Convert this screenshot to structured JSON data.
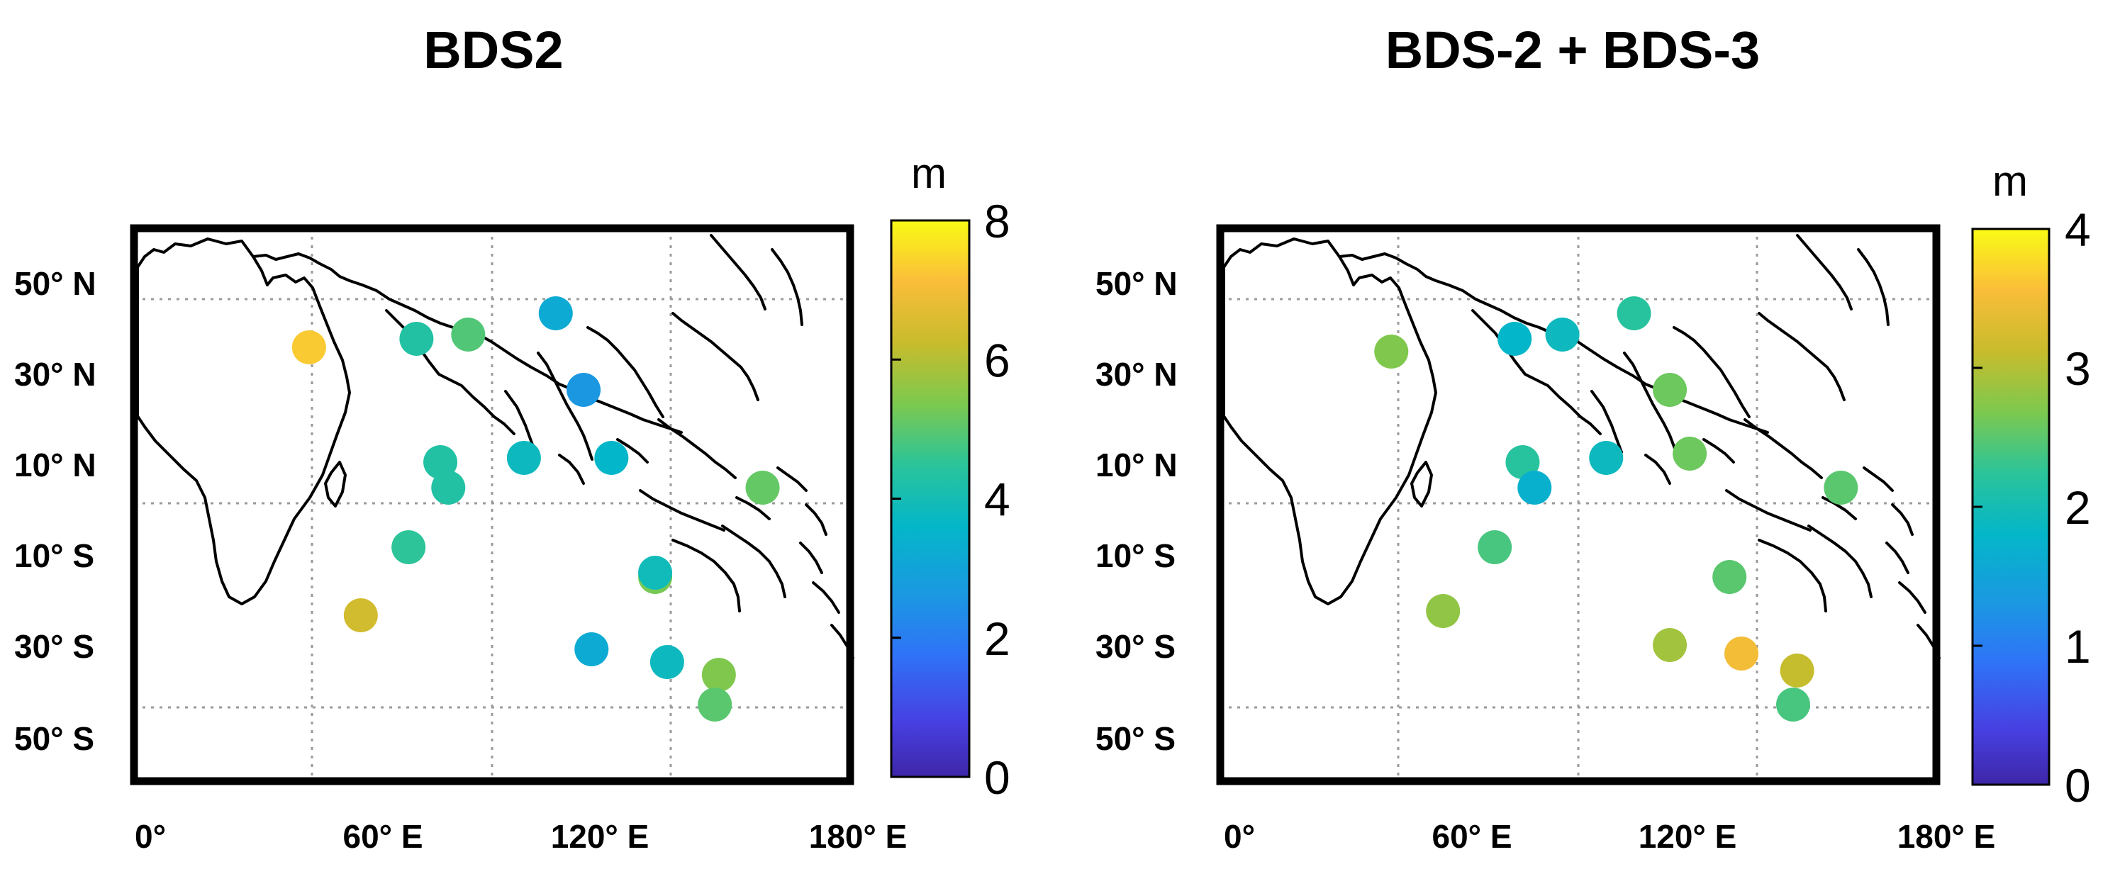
{
  "chart_data": [
    {
      "type": "scatter",
      "title": "BDS2",
      "xlim": [
        0,
        180
      ],
      "ylim": [
        -60,
        70
      ],
      "x_ticks": [
        "0°",
        "60° E",
        "120° E",
        "180° E"
      ],
      "y_ticks": [
        "50° N",
        "30° N",
        "10° N",
        "10° S",
        "30° S",
        "50° S"
      ],
      "colorbar": {
        "unit": "m",
        "min": 0,
        "max": 8,
        "ticks": [
          "0",
          "2",
          "4",
          "6",
          "8"
        ]
      },
      "points": [
        {
          "lon": 44,
          "lat": 42,
          "value": 7.3
        },
        {
          "lon": 71,
          "lat": 44,
          "value": 4.3
        },
        {
          "lon": 84,
          "lat": 45,
          "value": 4.9
        },
        {
          "lon": 106,
          "lat": 50,
          "value": 3.2
        },
        {
          "lon": 113,
          "lat": 32,
          "value": 2.6
        },
        {
          "lon": 77,
          "lat": 15,
          "value": 4.3
        },
        {
          "lon": 79,
          "lat": 9,
          "value": 4.3
        },
        {
          "lon": 98,
          "lat": 16,
          "value": 3.8
        },
        {
          "lon": 120,
          "lat": 16,
          "value": 3.6
        },
        {
          "lon": 158,
          "lat": 9,
          "value": 5.1
        },
        {
          "lon": 69,
          "lat": -5,
          "value": 4.5
        },
        {
          "lon": 57,
          "lat": -21,
          "value": 6.4
        },
        {
          "lon": 131,
          "lat": -12,
          "value": 5.3
        },
        {
          "lon": 131,
          "lat": -11,
          "value": 3.9
        },
        {
          "lon": 115,
          "lat": -29,
          "value": 3.2
        },
        {
          "lon": 134,
          "lat": -32,
          "value": 3.8
        },
        {
          "lon": 147,
          "lat": -35,
          "value": 5.4
        },
        {
          "lon": 146,
          "lat": -42,
          "value": 5.0
        }
      ]
    },
    {
      "type": "scatter",
      "title": "BDS-2 + BDS-3",
      "xlim": [
        0,
        180
      ],
      "ylim": [
        -60,
        70
      ],
      "x_ticks": [
        "0°",
        "60° E",
        "120° E",
        "180° E"
      ],
      "y_ticks": [
        "50° N",
        "30° N",
        "10° N",
        "10° S",
        "30° S",
        "50° S"
      ],
      "colorbar": {
        "unit": "m",
        "min": 0,
        "max": 4,
        "ticks": [
          "0",
          "1",
          "2",
          "3",
          "4"
        ]
      },
      "points": [
        {
          "lon": 43,
          "lat": 41,
          "value": 2.7
        },
        {
          "lon": 74,
          "lat": 44,
          "value": 1.8
        },
        {
          "lon": 86,
          "lat": 45,
          "value": 1.9
        },
        {
          "lon": 104,
          "lat": 50,
          "value": 2.2
        },
        {
          "lon": 113,
          "lat": 32,
          "value": 2.6
        },
        {
          "lon": 76,
          "lat": 15,
          "value": 2.2
        },
        {
          "lon": 79,
          "lat": 9,
          "value": 1.7
        },
        {
          "lon": 97,
          "lat": 16,
          "value": 1.9
        },
        {
          "lon": 118,
          "lat": 17,
          "value": 2.6
        },
        {
          "lon": 156,
          "lat": 9,
          "value": 2.5
        },
        {
          "lon": 69,
          "lat": -5,
          "value": 2.4
        },
        {
          "lon": 56,
          "lat": -20,
          "value": 2.8
        },
        {
          "lon": 128,
          "lat": -12,
          "value": 2.5
        },
        {
          "lon": 113,
          "lat": -28,
          "value": 2.9
        },
        {
          "lon": 131,
          "lat": -30,
          "value": 3.5
        },
        {
          "lon": 145,
          "lat": -34,
          "value": 3.1
        },
        {
          "lon": 144,
          "lat": -42,
          "value": 2.4
        }
      ]
    }
  ]
}
